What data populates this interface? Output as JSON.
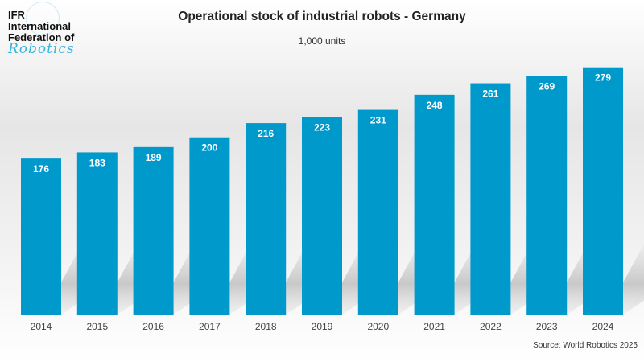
{
  "logo": {
    "line1": "IFR",
    "line2": "International",
    "line3": "Federation of",
    "line4": "Robotics"
  },
  "chart_data": {
    "type": "bar",
    "title": "Operational stock of industrial robots - Germany",
    "subtitle": "1,000 units",
    "categories": [
      "2014",
      "2015",
      "2016",
      "2017",
      "2018",
      "2019",
      "2020",
      "2021",
      "2022",
      "2023",
      "2024"
    ],
    "values": [
      176,
      183,
      189,
      200,
      216,
      223,
      231,
      248,
      261,
      269,
      279
    ],
    "ylim": [
      0,
      355
    ],
    "grid": false,
    "bar_color": "#0099cc",
    "label_color": "#ffffff",
    "source": "Source: World Robotics 2025"
  }
}
